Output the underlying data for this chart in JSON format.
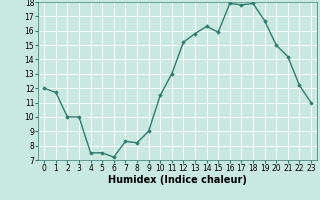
{
  "x": [
    0,
    1,
    2,
    3,
    4,
    5,
    6,
    7,
    8,
    9,
    10,
    11,
    12,
    13,
    14,
    15,
    16,
    17,
    18,
    19,
    20,
    21,
    22,
    23
  ],
  "y": [
    12,
    11.7,
    10,
    10,
    7.5,
    7.5,
    7.2,
    8.3,
    8.2,
    9.0,
    11.5,
    13.0,
    15.2,
    15.8,
    16.3,
    15.9,
    17.9,
    17.8,
    17.9,
    16.7,
    15.0,
    14.2,
    12.2,
    11.0
  ],
  "line_color": "#2e7d6e",
  "bg_color": "#c8e8e0",
  "grid_color": "#ffffff",
  "xlabel": "Humidex (Indice chaleur)",
  "ylim": [
    7,
    18
  ],
  "xlim_min": -0.5,
  "xlim_max": 23.5,
  "yticks": [
    7,
    8,
    9,
    10,
    11,
    12,
    13,
    14,
    15,
    16,
    17,
    18
  ],
  "xticks": [
    0,
    1,
    2,
    3,
    4,
    5,
    6,
    7,
    8,
    9,
    10,
    11,
    12,
    13,
    14,
    15,
    16,
    17,
    18,
    19,
    20,
    21,
    22,
    23
  ],
  "marker": "D",
  "markersize": 1.8,
  "linewidth": 1.0,
  "xlabel_fontsize": 7,
  "tick_fontsize": 5.5
}
